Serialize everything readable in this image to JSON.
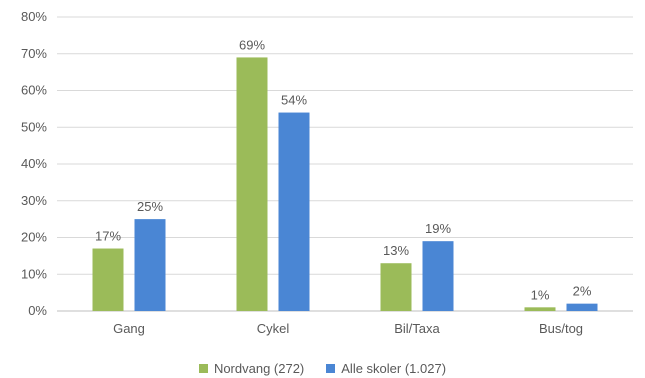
{
  "chart_data": {
    "type": "bar",
    "categories": [
      "Gang",
      "Cykel",
      "Bil/Taxa",
      "Bus/tog"
    ],
    "series": [
      {
        "name": "Nordvang (272)",
        "color": "#9bbb59",
        "values": [
          17,
          69,
          13,
          1
        ],
        "labels": [
          "17%",
          "69%",
          "13%",
          "1%"
        ]
      },
      {
        "name": "Alle skoler (1.027)",
        "color": "#4a86d4",
        "values": [
          25,
          54,
          19,
          2
        ],
        "labels": [
          "25%",
          "54%",
          "19%",
          "2%"
        ]
      }
    ],
    "yticks": [
      "0%",
      "10%",
      "20%",
      "30%",
      "40%",
      "50%",
      "60%",
      "70%",
      "80%"
    ],
    "ylim": [
      0,
      80
    ],
    "grid": true,
    "legend_position": "bottom"
  }
}
